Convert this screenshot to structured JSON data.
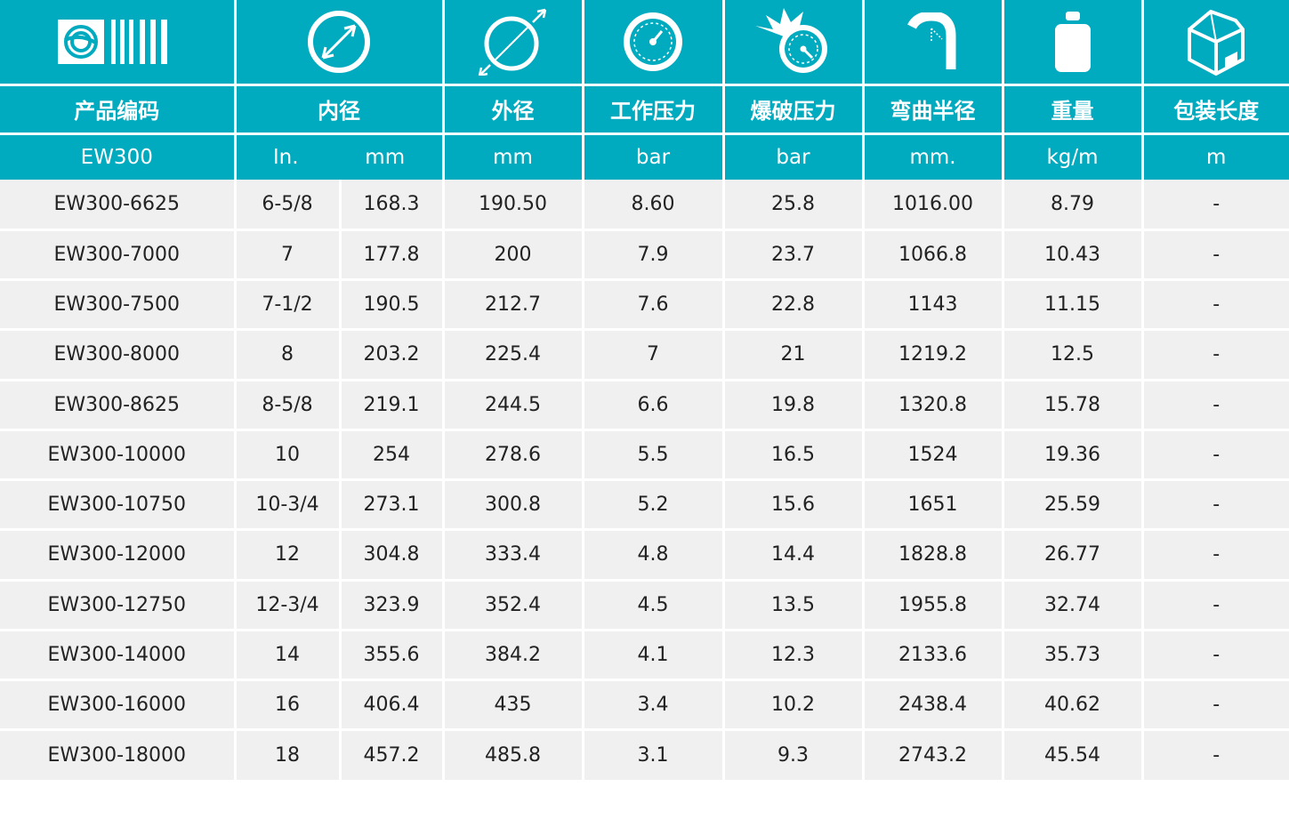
{
  "colors": {
    "header_bg": "#00abbf",
    "header_text": "#ffffff",
    "row_bg": "#f0f0f0",
    "text": "#222222"
  },
  "columns": [
    {
      "key": "code",
      "icon": "brand-logo-icon",
      "label": "产品编码",
      "unit": "EW300"
    },
    {
      "key": "id",
      "icon": "inner-diameter-icon",
      "label": "内径",
      "unit_in": "In.",
      "unit_mm": "mm"
    },
    {
      "key": "od",
      "icon": "outer-diameter-icon",
      "label": "外径",
      "unit": "mm"
    },
    {
      "key": "wp",
      "icon": "pressure-gauge-icon",
      "label": "工作压力",
      "unit": "bar"
    },
    {
      "key": "bp",
      "icon": "burst-pressure-icon",
      "label": "爆破压力",
      "unit": "bar"
    },
    {
      "key": "br",
      "icon": "bend-radius-icon",
      "label": "弯曲半径",
      "unit": "mm."
    },
    {
      "key": "wt",
      "icon": "weight-icon",
      "label": "重量",
      "unit": "kg/m"
    },
    {
      "key": "len",
      "icon": "package-box-icon",
      "label": "包装长度",
      "unit": "m"
    }
  ],
  "rows": [
    [
      "EW300-6625",
      "6-5/8",
      "168.3",
      "190.50",
      "8.60",
      "25.8",
      "1016.00",
      "8.79",
      "-"
    ],
    [
      "EW300-7000",
      "7",
      "177.8",
      "200",
      "7.9",
      "23.7",
      "1066.8",
      "10.43",
      "-"
    ],
    [
      "EW300-7500",
      "7-1/2",
      "190.5",
      "212.7",
      "7.6",
      "22.8",
      "1143",
      "11.15",
      "-"
    ],
    [
      "EW300-8000",
      "8",
      "203.2",
      "225.4",
      "7",
      "21",
      "1219.2",
      "12.5",
      "-"
    ],
    [
      "EW300-8625",
      "8-5/8",
      "219.1",
      "244.5",
      "6.6",
      "19.8",
      "1320.8",
      "15.78",
      "-"
    ],
    [
      "EW300-10000",
      "10",
      "254",
      "278.6",
      "5.5",
      "16.5",
      "1524",
      "19.36",
      "-"
    ],
    [
      "EW300-10750",
      "10-3/4",
      "273.1",
      "300.8",
      "5.2",
      "15.6",
      "1651",
      "25.59",
      "-"
    ],
    [
      "EW300-12000",
      "12",
      "304.8",
      "333.4",
      "4.8",
      "14.4",
      "1828.8",
      "26.77",
      "-"
    ],
    [
      "EW300-12750",
      "12-3/4",
      "323.9",
      "352.4",
      "4.5",
      "13.5",
      "1955.8",
      "32.74",
      "-"
    ],
    [
      "EW300-14000",
      "14",
      "355.6",
      "384.2",
      "4.1",
      "12.3",
      "2133.6",
      "35.73",
      "-"
    ],
    [
      "EW300-16000",
      "16",
      "406.4",
      "435",
      "3.4",
      "10.2",
      "2438.4",
      "40.62",
      "-"
    ],
    [
      "EW300-18000",
      "18",
      "457.2",
      "485.8",
      "3.1",
      "9.3",
      "2743.2",
      "45.54",
      "-"
    ]
  ]
}
